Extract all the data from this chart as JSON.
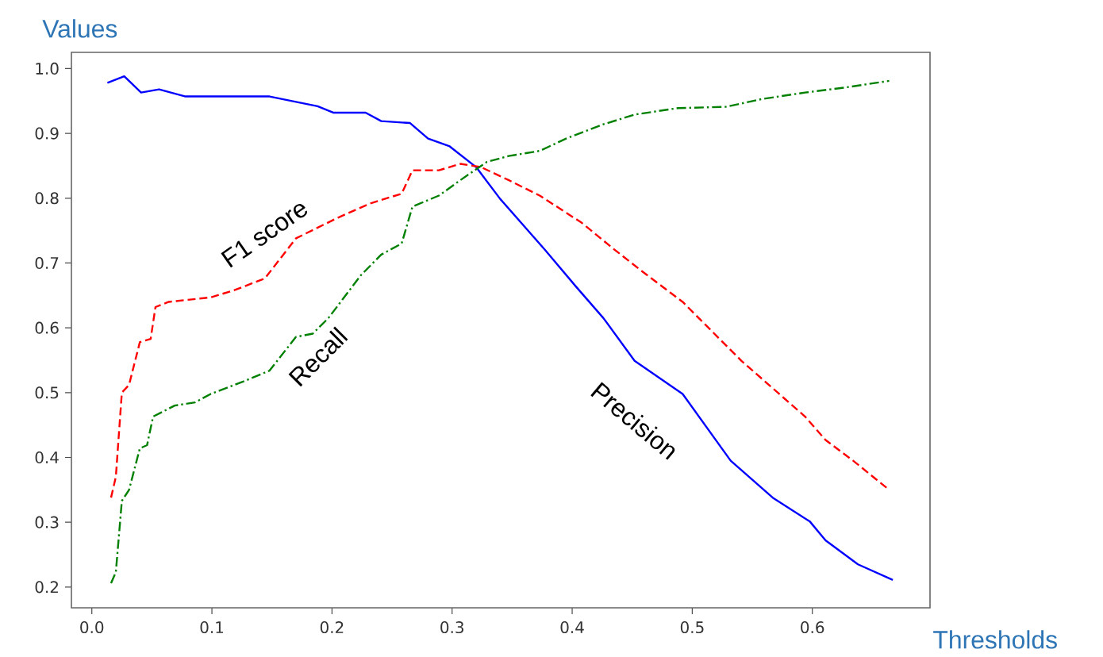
{
  "chart_data": {
    "type": "line",
    "xlabel": "Thresholds",
    "ylabel": "Values",
    "xlim": [
      -0.017,
      0.698
    ],
    "ylim": [
      0.168,
      1.025
    ],
    "xticks": [
      {
        "value": 0,
        "label": "0.0"
      },
      {
        "value": 0.1,
        "label": "0.1"
      },
      {
        "value": 0.2,
        "label": "0.2"
      },
      {
        "value": 0.3,
        "label": "0.3"
      },
      {
        "value": 0.4,
        "label": "0.4"
      },
      {
        "value": 0.5,
        "label": "0.5"
      },
      {
        "value": 0.6,
        "label": "0.6"
      }
    ],
    "yticks": [
      {
        "value": 0.2,
        "label": "0.2"
      },
      {
        "value": 0.3,
        "label": "0.3"
      },
      {
        "value": 0.4,
        "label": "0.4"
      },
      {
        "value": 0.5,
        "label": "0.5"
      },
      {
        "value": 0.6,
        "label": "0.6"
      },
      {
        "value": 0.7,
        "label": "0.7"
      },
      {
        "value": 0.8,
        "label": "0.8"
      },
      {
        "value": 0.9,
        "label": "0.9"
      },
      {
        "value": 1.0,
        "label": "1.0"
      }
    ],
    "series": [
      {
        "color": "#0000ff",
        "line_style": "solid",
        "x": [
          0.013,
          0.027,
          0.041,
          0.056,
          0.078,
          0.148,
          0.188,
          0.201,
          0.228,
          0.241,
          0.265,
          0.28,
          0.298,
          0.32,
          0.34,
          0.377,
          0.403,
          0.426,
          0.452,
          0.492,
          0.532,
          0.567,
          0.598,
          0.611,
          0.638,
          0.667
        ],
        "values": [
          0.978,
          0.988,
          0.963,
          0.968,
          0.957,
          0.957,
          0.942,
          0.932,
          0.932,
          0.919,
          0.916,
          0.892,
          0.88,
          0.848,
          0.799,
          0.721,
          0.664,
          0.615,
          0.549,
          0.498,
          0.395,
          0.338,
          0.301,
          0.272,
          0.235,
          0.211
        ]
      },
      {
        "color": "#ff0000",
        "line_style": "dashed",
        "x": [
          0.016,
          0.02,
          0.025,
          0.031,
          0.04,
          0.049,
          0.053,
          0.064,
          0.099,
          0.117,
          0.144,
          0.17,
          0.205,
          0.232,
          0.258,
          0.267,
          0.289,
          0.307,
          0.324,
          0.347,
          0.373,
          0.408,
          0.435,
          0.457,
          0.492,
          0.541,
          0.594,
          0.611,
          0.634,
          0.664
        ],
        "values": [
          0.338,
          0.37,
          0.5,
          0.512,
          0.578,
          0.583,
          0.632,
          0.64,
          0.647,
          0.657,
          0.676,
          0.738,
          0.77,
          0.792,
          0.807,
          0.843,
          0.843,
          0.853,
          0.848,
          0.828,
          0.804,
          0.762,
          0.721,
          0.689,
          0.64,
          0.549,
          0.463,
          0.427,
          0.395,
          0.35
        ]
      },
      {
        "color": "#008000",
        "line_style": "dashdot",
        "x": [
          0.016,
          0.02,
          0.025,
          0.031,
          0.04,
          0.046,
          0.051,
          0.069,
          0.086,
          0.099,
          0.126,
          0.148,
          0.17,
          0.184,
          0.197,
          0.224,
          0.241,
          0.258,
          0.267,
          0.289,
          0.307,
          0.329,
          0.347,
          0.373,
          0.395,
          0.426,
          0.452,
          0.488,
          0.528,
          0.558,
          0.594,
          0.628,
          0.664
        ],
        "values": [
          0.206,
          0.223,
          0.333,
          0.35,
          0.414,
          0.419,
          0.463,
          0.48,
          0.485,
          0.498,
          0.517,
          0.534,
          0.586,
          0.591,
          0.615,
          0.681,
          0.713,
          0.73,
          0.787,
          0.804,
          0.828,
          0.856,
          0.865,
          0.873,
          0.892,
          0.914,
          0.929,
          0.939,
          0.941,
          0.953,
          0.963,
          0.971,
          0.981
        ]
      }
    ],
    "annotations": [
      "F1 score",
      "Recall",
      "Precision"
    ]
  }
}
